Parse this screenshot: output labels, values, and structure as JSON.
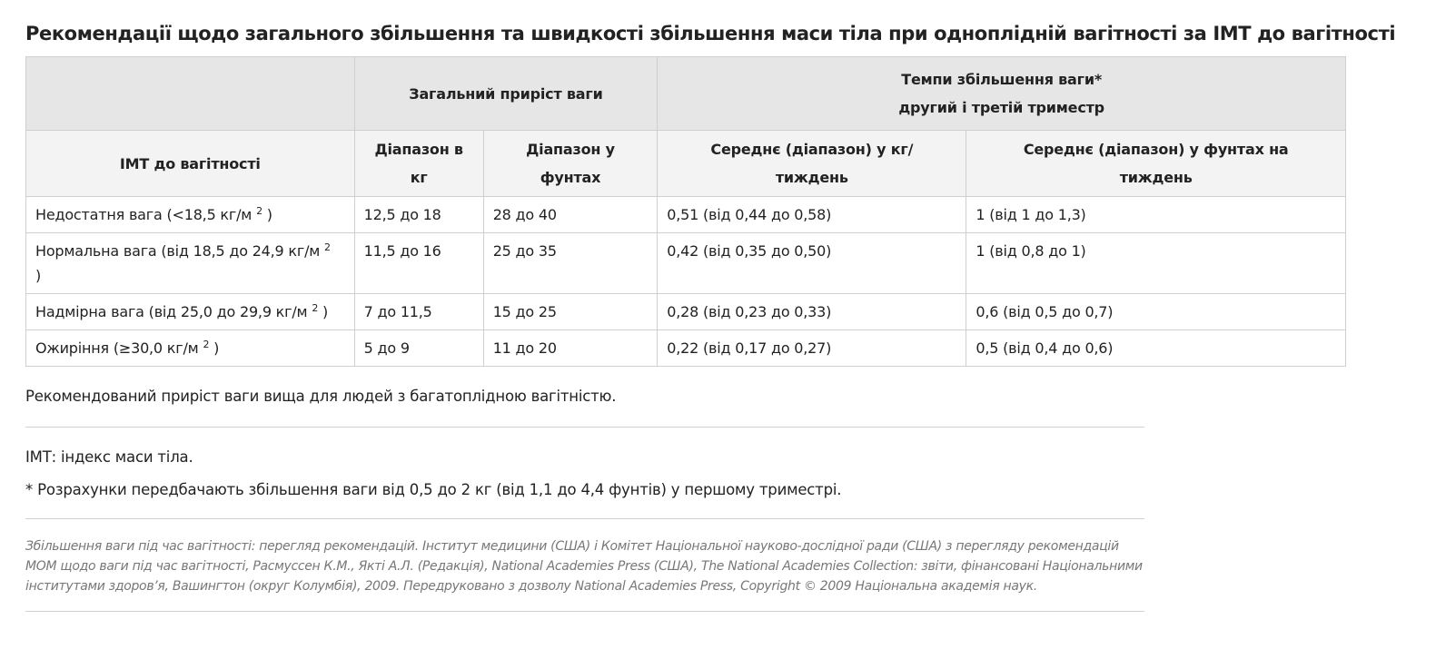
{
  "title": "Рекомендації щодо загального збільшення та швидкості збільшення маси тіла при одноплідній вагітності за ІМТ до вагітності",
  "table": {
    "group_headers": {
      "total": "Загальний приріст ваги",
      "rate_line1": "Темпи збільшення ваги*",
      "rate_line2": "другий і третій триместр"
    },
    "column_headers": {
      "bmi": "ІМТ до вагітності",
      "range_kg_line1": "Діапазон в",
      "range_kg_line2": "кг",
      "range_lb_line1": "Діапазон у",
      "range_lb_line2": "фунтах",
      "mean_kg_line1": "Середнє (діапазон) у кг/",
      "mean_kg_line2": "тиждень",
      "mean_lb_line1": "Середнє (діапазон) у фунтах на",
      "mean_lb_line2": "тиждень"
    },
    "rows": [
      {
        "bmi_text": "Недостатня вага (<18,5 кг/м",
        "bmi_sup": "2",
        "bmi_close": ")",
        "range_kg": "12,5 до 18",
        "range_lb": "28 до 40",
        "mean_kg": "0,51 (від 0,44 до 0,58)",
        "mean_lb": "1 (від 1 до 1,3)"
      },
      {
        "bmi_text": "Нормальна вага (від 18,5 до 24,9 кг/м",
        "bmi_sup": "2",
        "bmi_close": ")",
        "range_kg": "11,5 до 16",
        "range_lb": "25 до 35",
        "mean_kg": "0,42 (від 0,35 до 0,50)",
        "mean_lb": "1 (від 0,8 до 1)"
      },
      {
        "bmi_text": "Надмірна вага (від 25,0 до 29,9 кг/м",
        "bmi_sup": "2",
        "bmi_close": ")",
        "range_kg": "7 до 11,5",
        "range_lb": "15 до 25",
        "mean_kg": "0,28 (від 0,23 до 0,33)",
        "mean_lb": "0,6 (від 0,5 до 0,7)"
      },
      {
        "bmi_text": "Ожиріння (≥30,0 кг/м",
        "bmi_sup": "2",
        "bmi_close": ")",
        "range_kg": "5 до 9",
        "range_lb": "11 до 20",
        "mean_kg": "0,22 (від 0,17 до 0,27)",
        "mean_lb": "0,5 (від 0,4 до 0,6)"
      }
    ]
  },
  "notes": {
    "multiple": "Рекомендований приріст ваги вища для людей з багатоплідною вагітністю.",
    "bmi_def": "ІМТ: індекс маси тіла.",
    "calc": "* Розрахунки передбачають збільшення ваги від 0,5 до 2 кг (від 1,1 до 4,4 фунтів) у першому триместрі."
  },
  "credit": "Збільшення ваги під час вагітності: перегляд рекомендацій. Інститут медицини (США) і Комітет Національної науково-дослідної ради (США) з перегляду рекомендацій MOM щодо ваги під час вагітності, Расмуссен К.М., Якті А.Л. (Редакція), National Academies Press (США), The National Academies Collection: звіти, фінансовані Національними інститутами здоров’я, Вашингтон (округ Колумбія), 2009. Передруковано з дозволу National Academies Press, Copyright © 2009 Національна академія наук."
}
